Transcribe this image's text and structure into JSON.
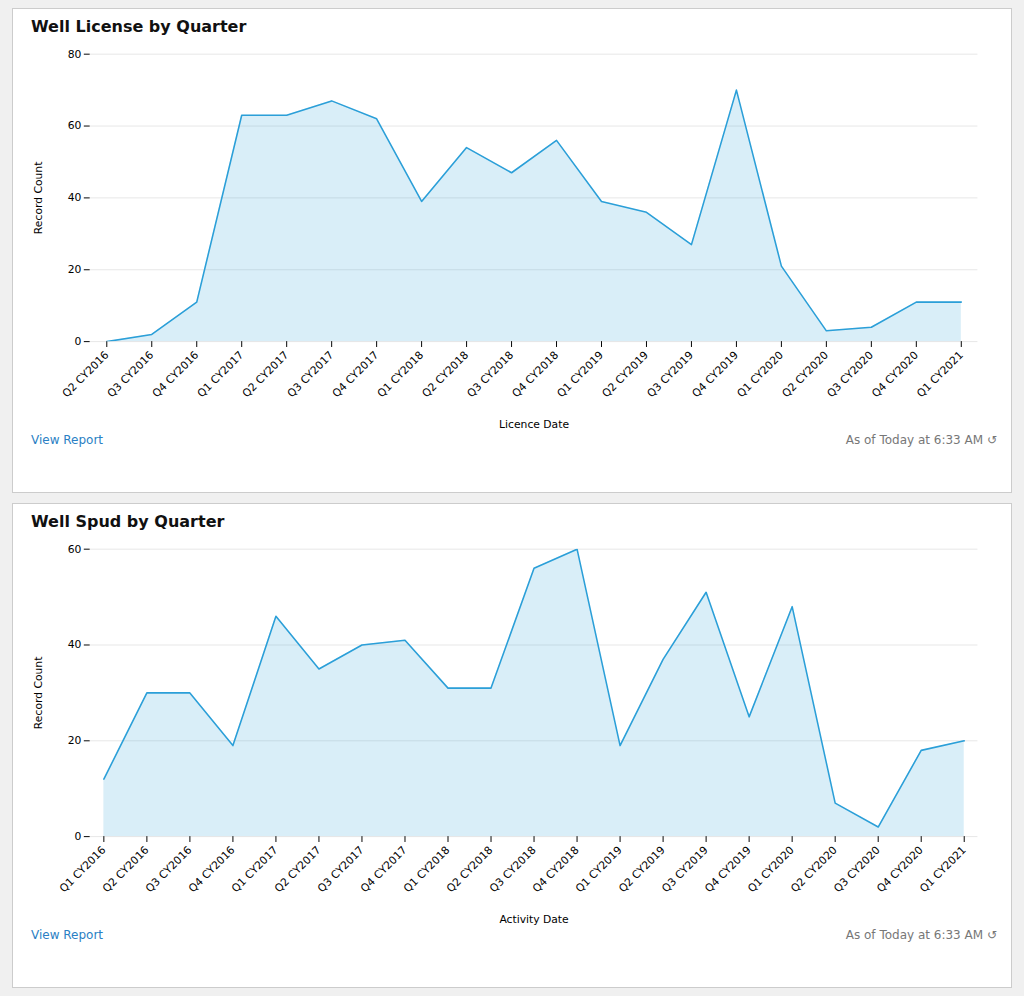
{
  "chart_data": [
    {
      "type": "area",
      "title": "Well License by Quarter",
      "x_label": "Licence Date",
      "y_label": "Record Count",
      "categories": [
        "Q2 CY2016",
        "Q3 CY2016",
        "Q4 CY2016",
        "Q1 CY2017",
        "Q2 CY2017",
        "Q3 CY2017",
        "Q4 CY2017",
        "Q1 CY2018",
        "Q2 CY2018",
        "Q3 CY2018",
        "Q4 CY2018",
        "Q1 CY2019",
        "Q2 CY2019",
        "Q3 CY2019",
        "Q4 CY2019",
        "Q1 CY2020",
        "Q2 CY2020",
        "Q3 CY2020",
        "Q4 CY2020",
        "Q1 CY2021"
      ],
      "values": [
        0,
        2,
        11,
        63,
        63,
        67,
        62,
        39,
        54,
        47,
        56,
        39,
        36,
        27,
        70,
        21,
        3,
        4,
        11,
        11
      ],
      "ylim": [
        0,
        80
      ],
      "yticks": [
        0,
        20,
        40,
        60,
        80
      ],
      "color": "#2b9fd8",
      "grid": true,
      "annotations": [
        "View Report",
        "As of Today at 6:33 AM  ↺"
      ]
    },
    {
      "type": "area",
      "title": "Well Spud by Quarter",
      "x_label": "Activity Date",
      "y_label": "Record Count",
      "categories": [
        "Q1 CY2016",
        "Q2 CY2016",
        "Q3 CY2016",
        "Q4 CY2016",
        "Q1 CY2017",
        "Q2 CY2017",
        "Q3 CY2017",
        "Q4 CY2017",
        "Q1 CY2018",
        "Q2 CY2018",
        "Q3 CY2018",
        "Q4 CY2018",
        "Q1 CY2019",
        "Q2 CY2019",
        "Q3 CY2019",
        "Q4 CY2019",
        "Q1 CY2020",
        "Q2 CY2020",
        "Q3 CY2020",
        "Q4 CY2020",
        "Q1 CY2021"
      ],
      "values": [
        12,
        30,
        30,
        19,
        46,
        35,
        40,
        41,
        31,
        31,
        56,
        60,
        19,
        37,
        51,
        25,
        48,
        7,
        2,
        18,
        20
      ],
      "ylim": [
        0,
        60
      ],
      "yticks": [
        0,
        20,
        40,
        60
      ],
      "color": "#2b9fd8",
      "grid": true,
      "annotations": [
        "View Report",
        "As of Today at 6:33 AM  ↺"
      ]
    }
  ]
}
